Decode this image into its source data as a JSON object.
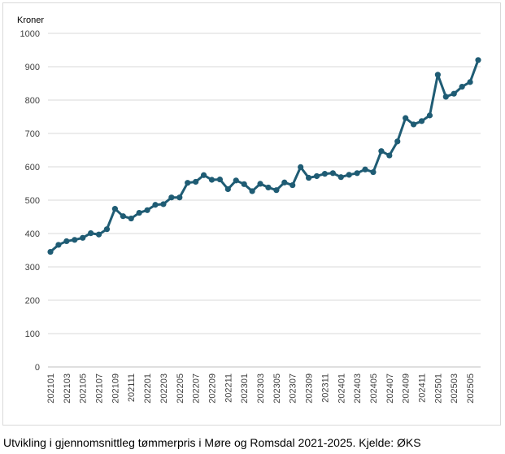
{
  "caption": "Utvikling i gjennomsnittleg tømmerpris i Møre og Romsdal 2021-2025. Kjelde: ØKS",
  "chart_data": {
    "type": "line",
    "title": "",
    "xlabel": "",
    "ylabel": "Kroner",
    "ylim": [
      0,
      1000
    ],
    "yticks": [
      0,
      100,
      200,
      300,
      400,
      500,
      600,
      700,
      800,
      900,
      1000
    ],
    "grid": true,
    "legend": "none",
    "line_color": "#1f5c74",
    "x": [
      "202101",
      "202102",
      "202103",
      "202104",
      "202105",
      "202106",
      "202107",
      "202108",
      "202109",
      "202110",
      "202111",
      "202112",
      "202201",
      "202202",
      "202203",
      "202204",
      "202205",
      "202206",
      "202207",
      "202208",
      "202209",
      "202210",
      "202211",
      "202212",
      "202301",
      "202302",
      "202303",
      "202304",
      "202305",
      "202306",
      "202307",
      "202308",
      "202309",
      "202310",
      "202311",
      "202312",
      "202401",
      "202402",
      "202403",
      "202404",
      "202405",
      "202406",
      "202407",
      "202408",
      "202409",
      "202410",
      "202411",
      "202412",
      "202501",
      "202502",
      "202503",
      "202504",
      "202505",
      "202506"
    ],
    "xtick_labels": [
      "202101",
      "202103",
      "202105",
      "202107",
      "202109",
      "202111",
      "202201",
      "202203",
      "202205",
      "202207",
      "202209",
      "202211",
      "202301",
      "202303",
      "202305",
      "202307",
      "202309",
      "202311",
      "202401",
      "202403",
      "202405",
      "202407",
      "202409",
      "202411",
      "202501",
      "202503",
      "202505"
    ],
    "series": [
      {
        "values": [
          345,
          366,
          377,
          381,
          387,
          401,
          397,
          413,
          474,
          452,
          445,
          462,
          470,
          486,
          488,
          508,
          508,
          552,
          555,
          575,
          561,
          562,
          533,
          559,
          548,
          527,
          549,
          538,
          530,
          553,
          545,
          599,
          567,
          572,
          579,
          581,
          569,
          576,
          581,
          592,
          584,
          647,
          634,
          676,
          746,
          727,
          737,
          754,
          876,
          810,
          819,
          840,
          854,
          920
        ]
      }
    ]
  }
}
